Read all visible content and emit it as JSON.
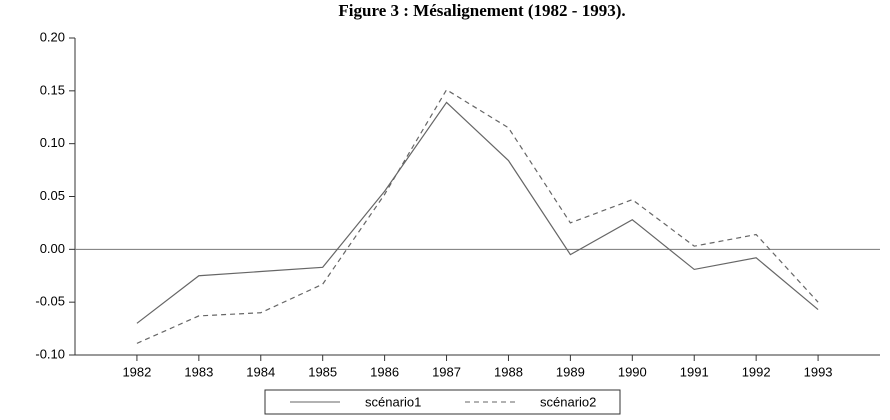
{
  "chart_data": {
    "type": "line",
    "title": "Figure 3 : Mésalignement (1982 - 1993).",
    "x": [
      1982,
      1983,
      1984,
      1985,
      1986,
      1987,
      1988,
      1989,
      1990,
      1991,
      1992,
      1993
    ],
    "xlim": [
      1981,
      1994
    ],
    "xticks": [
      1982,
      1983,
      1984,
      1985,
      1986,
      1987,
      1988,
      1989,
      1990,
      1991,
      1992,
      1993
    ],
    "ylim": [
      -0.1,
      0.2
    ],
    "yticks": [
      {
        "value": -0.1,
        "label": "-0.10"
      },
      {
        "value": -0.05,
        "label": "-0.05"
      },
      {
        "value": 0,
        "label": "0.00"
      },
      {
        "value": 0.05,
        "label": "0.05"
      },
      {
        "value": 0.1,
        "label": "0.10"
      },
      {
        "value": 0.15,
        "label": "0.15"
      },
      {
        "value": 0.2,
        "label": "0.20"
      }
    ],
    "zero_line": true,
    "series": [
      {
        "name": "scénario1",
        "color": "#666666",
        "dashed": false,
        "values": [
          -0.07,
          -0.025,
          -0.021,
          -0.017,
          0.055,
          0.139,
          0.084,
          -0.005,
          0.028,
          -0.019,
          -0.008,
          -0.057
        ]
      },
      {
        "name": "scénario2",
        "color": "#666666",
        "dashed": true,
        "values": [
          -0.089,
          -0.063,
          -0.06,
          -0.033,
          0.052,
          0.151,
          0.115,
          0.025,
          0.047,
          0.003,
          0.014,
          -0.05
        ]
      }
    ]
  }
}
